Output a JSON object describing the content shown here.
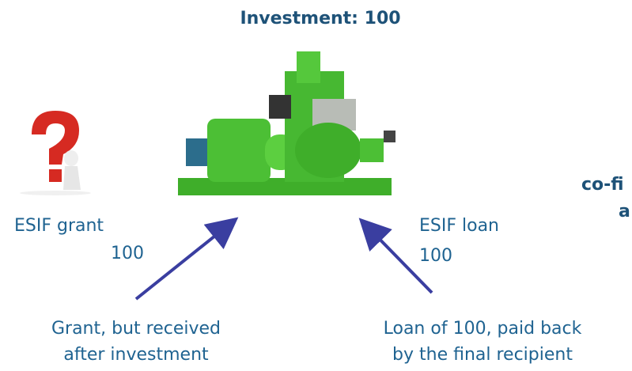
{
  "title": "Investment: 100",
  "left": {
    "label": "ESIF grant",
    "amount": "100",
    "note": [
      "Grant, but received",
      "after investment"
    ]
  },
  "right": {
    "label": "ESIF loan",
    "amount": "100",
    "note": [
      "Loan of 100, paid back",
      "by the final recipient"
    ]
  },
  "cut_off_text": [
    "co-fi",
    "a"
  ]
}
